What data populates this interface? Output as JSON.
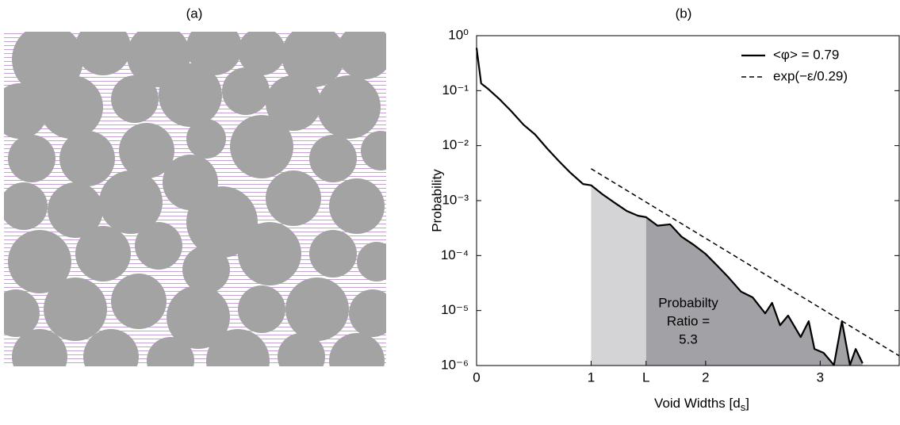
{
  "chart_data": [
    {
      "type": "image",
      "title": "(a)"
    },
    {
      "type": "line",
      "title": "(b)",
      "xlabel": [
        "Void Widths [d",
        "s",
        "]"
      ],
      "ylabel": "Probability",
      "xlim": [
        0,
        3.69
      ],
      "ylim": [
        1e-06,
        1
      ],
      "log_y": true,
      "xticks": [
        0,
        1,
        {
          "value": 1.48,
          "label": "L"
        },
        2,
        3
      ],
      "yticks": [
        {
          "value": 1,
          "label": "10⁰"
        },
        {
          "value": 0.1,
          "label": "10⁻¹"
        },
        {
          "value": 0.01,
          "label": "10⁻²"
        },
        {
          "value": 0.001,
          "label": "10⁻³"
        },
        {
          "value": 0.0001,
          "label": "10⁻⁴"
        },
        {
          "value": 1e-05,
          "label": "10⁻⁵"
        },
        {
          "value": 1e-06,
          "label": "10⁻⁶"
        }
      ],
      "legend": "top-right",
      "shade_colors": [
        "#d4d4d6",
        "#a2a2a6"
      ],
      "series": [
        {
          "name": "<φ> = 0.79",
          "color": "#000000",
          "style": "solid",
          "x": [
            0,
            0.04,
            0.1,
            0.2,
            0.3,
            0.41,
            0.51,
            0.62,
            0.72,
            0.82,
            0.93,
            1.0,
            1.1,
            1.2,
            1.31,
            1.41,
            1.48,
            1.58,
            1.69,
            1.79,
            1.89,
            2.0,
            2.1,
            2.2,
            2.31,
            2.41,
            2.52,
            2.58,
            2.65,
            2.72,
            2.83,
            2.9,
            2.95,
            3.03,
            3.12,
            3.19,
            3.26,
            3.31,
            3.37
          ],
          "values": [
            0.6,
            0.135,
            0.108,
            0.07,
            0.043,
            0.024,
            0.016,
            0.0087,
            0.0052,
            0.0032,
            0.002,
            0.0019,
            0.0013,
            0.00093,
            0.00065,
            0.00053,
            0.0005,
            0.00035,
            0.00037,
            0.00022,
            0.00016,
            0.000107,
            6.6e-05,
            4e-05,
            2.2e-05,
            1.74e-05,
            8.9e-06,
            1.38e-05,
            5.4e-06,
            8.1e-06,
            3.3e-06,
            6.4e-06,
            2e-06,
            1.7e-06,
            1.02e-06,
            6.4e-06,
            1.02e-06,
            2e-06,
            1.1e-06
          ]
        },
        {
          "name": "exp(−ε/0.29)",
          "color": "#000000",
          "style": "dash",
          "x": [
            1.0,
            3.69
          ],
          "values": [
            0.0038,
            1.5e-06
          ]
        }
      ],
      "annotation": [
        "Probabilty",
        "Ratio =",
        "5.3"
      ]
    }
  ]
}
